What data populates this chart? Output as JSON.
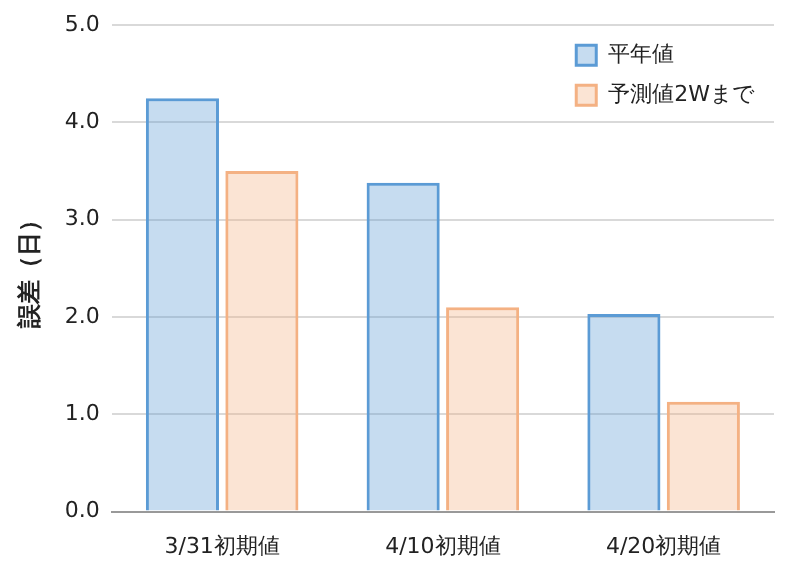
{
  "chart_data": {
    "type": "bar",
    "ylabel": "誤差（日）",
    "categories": [
      "3/31初期値",
      "4/10初期値",
      "4/20初期値"
    ],
    "series": [
      {
        "name": "平年値",
        "color": "#5b9bd5",
        "values": [
          4.25,
          3.38,
          2.03
        ]
      },
      {
        "name": "予測値2Wまで",
        "color": "#f4b183",
        "values": [
          3.5,
          2.1,
          1.13
        ]
      }
    ],
    "ylim": [
      0,
      5
    ],
    "yticks": [
      {
        "value": 0,
        "label": "0.0"
      },
      {
        "value": 1,
        "label": "1.0"
      },
      {
        "value": 2,
        "label": "2.0"
      },
      {
        "value": 3,
        "label": "3.0"
      },
      {
        "value": 4,
        "label": "4.0"
      },
      {
        "value": 5,
        "label": "5.0"
      }
    ],
    "grid": "y",
    "legend": "top right"
  }
}
